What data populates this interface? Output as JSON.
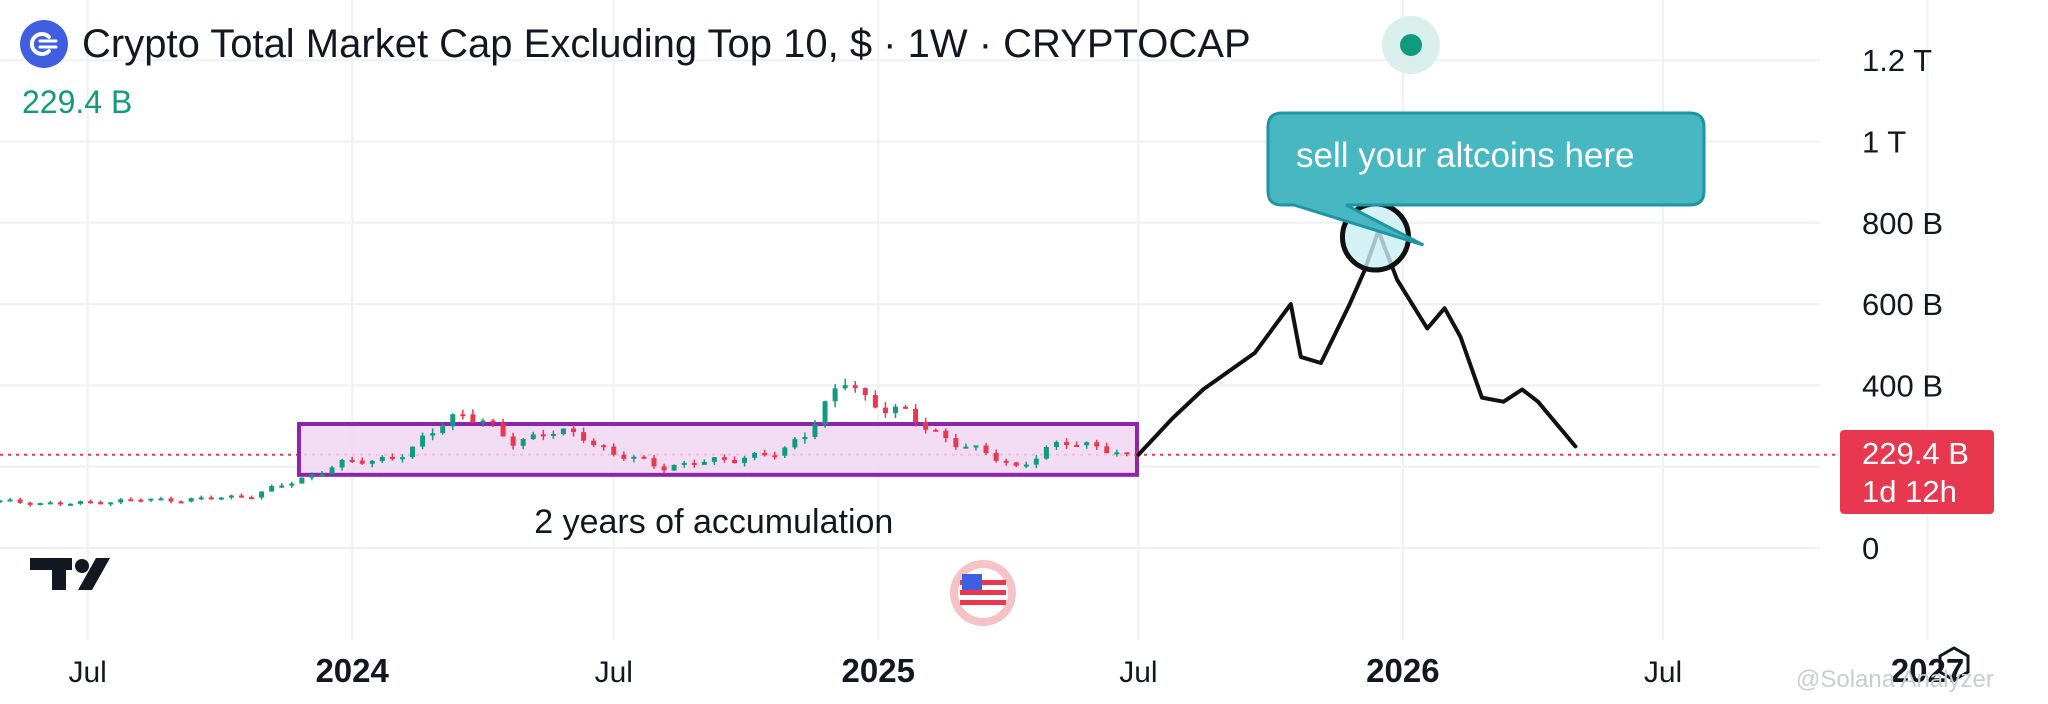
{
  "header": {
    "title": "Crypto Total Market Cap Excluding Top 10, $ · 1W · CRYPTOCAP",
    "last_value": "229.4 B",
    "logo_icon": "crypto-cap-logo-icon",
    "status_icon": "market-status-icon"
  },
  "price_tag": {
    "value": "229.4 B",
    "countdown": "1d 12h"
  },
  "watermark": "@Solana Analyzer",
  "colors": {
    "up": "#129a7e",
    "down": "#e8384f",
    "box_border": "#8e24aa",
    "box_fill": "#f0d6f1",
    "callout": "#47b7c2",
    "title": "#131722"
  },
  "chart_data": {
    "type": "line",
    "title": "Crypto Total Market Cap Excluding Top 10, $ · 1W · CRYPTOCAP",
    "y_axis": {
      "ticks": [
        {
          "value": 0,
          "label": "0"
        },
        {
          "value": 200,
          "label": ""
        },
        {
          "value": 400,
          "label": "400 B"
        },
        {
          "value": 600,
          "label": "600 B"
        },
        {
          "value": 800,
          "label": "800 B"
        },
        {
          "value": 1000,
          "label": "1 T"
        },
        {
          "value": 1200,
          "label": "1.2 T"
        }
      ],
      "ylim": [
        0,
        1200
      ],
      "unit": "B"
    },
    "x_axis": {
      "ticks": [
        {
          "date": "2023-07-01",
          "label": "Jul",
          "bold": false
        },
        {
          "date": "2024-01-01",
          "label": "2024",
          "bold": true
        },
        {
          "date": "2024-07-01",
          "label": "Jul",
          "bold": false
        },
        {
          "date": "2025-01-01",
          "label": "2025",
          "bold": true
        },
        {
          "date": "2025-07-01",
          "label": "Jul",
          "bold": false
        },
        {
          "date": "2026-01-01",
          "label": "2026",
          "bold": true
        },
        {
          "date": "2026-07-01",
          "label": "Jul",
          "bold": false
        },
        {
          "date": "2027-01-01",
          "label": "2027",
          "bold": true
        }
      ],
      "range": [
        "2023-05-01",
        "2027-05-01"
      ]
    },
    "grid": true,
    "current_price": 229.4,
    "series": [
      {
        "kind": "price",
        "points": [
          [
            "2023-05-01",
            115
          ],
          [
            "2023-06-15",
            108
          ],
          [
            "2023-08-01",
            118
          ],
          [
            "2023-09-15",
            120
          ],
          [
            "2023-10-20",
            128
          ],
          [
            "2023-11-15",
            155
          ],
          [
            "2023-12-01",
            175
          ],
          [
            "2023-12-20",
            205
          ],
          [
            "2024-01-15",
            215
          ],
          [
            "2024-02-10",
            235
          ],
          [
            "2024-03-01",
            300
          ],
          [
            "2024-03-15",
            335
          ],
          [
            "2024-04-01",
            310
          ],
          [
            "2024-04-20",
            260
          ],
          [
            "2024-05-15",
            285
          ],
          [
            "2024-06-10",
            275
          ],
          [
            "2024-07-01",
            230
          ],
          [
            "2024-08-05",
            200
          ],
          [
            "2024-09-01",
            210
          ],
          [
            "2024-10-01",
            225
          ],
          [
            "2024-10-25",
            230
          ],
          [
            "2024-11-15",
            300
          ],
          [
            "2024-12-01",
            380
          ],
          [
            "2024-12-10",
            410
          ],
          [
            "2024-12-25",
            360
          ],
          [
            "2025-01-15",
            340
          ],
          [
            "2025-02-05",
            290
          ],
          [
            "2025-03-10",
            240
          ],
          [
            "2025-04-07",
            200
          ],
          [
            "2025-05-10",
            260
          ],
          [
            "2025-06-01",
            255
          ],
          [
            "2025-06-22",
            220
          ],
          [
            "2025-07-01",
            229.4
          ]
        ]
      },
      {
        "kind": "projection",
        "points": [
          [
            "2025-07-01",
            229.4
          ],
          [
            "2025-07-25",
            320
          ],
          [
            "2025-08-15",
            390
          ],
          [
            "2025-09-20",
            480
          ],
          [
            "2025-10-15",
            600
          ],
          [
            "2025-10-22",
            470
          ],
          [
            "2025-11-05",
            455
          ],
          [
            "2025-11-25",
            600
          ],
          [
            "2025-12-05",
            680
          ],
          [
            "2025-12-15",
            780
          ],
          [
            "2025-12-28",
            660
          ],
          [
            "2026-01-18",
            540
          ],
          [
            "2026-01-30",
            590
          ],
          [
            "2026-02-10",
            520
          ],
          [
            "2026-02-25",
            370
          ],
          [
            "2026-03-12",
            360
          ],
          [
            "2026-03-25",
            390
          ],
          [
            "2026-04-05",
            360
          ],
          [
            "2026-05-01",
            250
          ]
        ]
      }
    ],
    "annotations": [
      {
        "type": "range_box",
        "from": "2023-11-25",
        "to": "2025-06-30",
        "y_low": 180,
        "y_high": 305,
        "label": "2 years of accumulation"
      },
      {
        "type": "callout",
        "text": "sell your altcoins here",
        "target_date": "2025-12-15",
        "target_value": 780
      },
      {
        "type": "circle",
        "date": "2025-12-15",
        "value": 765
      }
    ]
  }
}
